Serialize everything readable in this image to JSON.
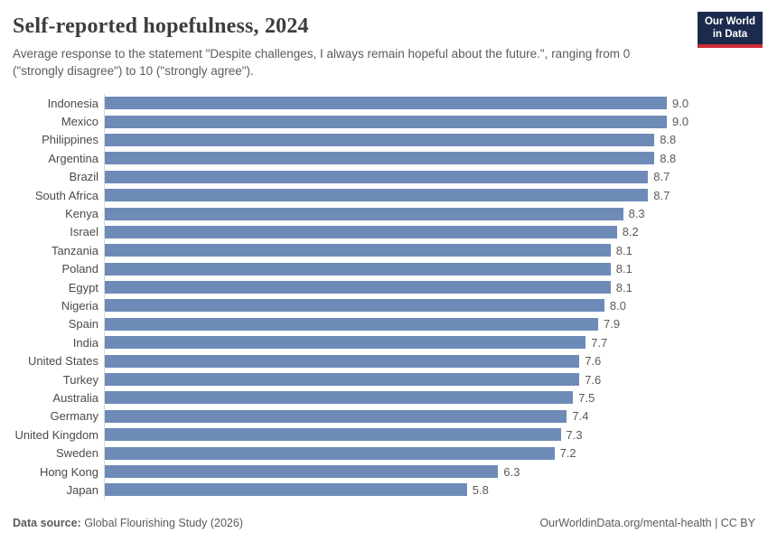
{
  "header": {
    "title": "Self-reported hopefulness, 2024",
    "subtitle": "Average response to the statement \"Despite challenges, I always remain hopeful about the future.\", ranging from 0 (\"strongly disagree\") to 10 (\"strongly agree\").",
    "logo": {
      "line1": "Our World",
      "line2": "in Data"
    }
  },
  "chart_data": {
    "type": "bar",
    "orientation": "horizontal",
    "title": "Self-reported hopefulness, 2024",
    "categories": [
      "Indonesia",
      "Mexico",
      "Philippines",
      "Argentina",
      "Brazil",
      "South Africa",
      "Kenya",
      "Israel",
      "Tanzania",
      "Poland",
      "Egypt",
      "Nigeria",
      "Spain",
      "India",
      "United States",
      "Turkey",
      "Australia",
      "Germany",
      "United Kingdom",
      "Sweden",
      "Hong Kong",
      "Japan"
    ],
    "values": [
      9.0,
      9.0,
      8.8,
      8.8,
      8.7,
      8.7,
      8.3,
      8.2,
      8.1,
      8.1,
      8.1,
      8.0,
      7.9,
      7.7,
      7.6,
      7.6,
      7.5,
      7.4,
      7.3,
      7.2,
      6.3,
      5.8
    ],
    "xlim": [
      0,
      9.0
    ],
    "value_decimals": 1,
    "bar_color": "#6e8bb8",
    "grid": false,
    "legend": "none",
    "xlabel": "",
    "ylabel": ""
  },
  "footer": {
    "source_label": "Data source:",
    "source_value": " Global Flourishing Study (2026)",
    "attribution": "OurWorldinData.org/mental-health | CC BY"
  },
  "colors": {
    "bar": "#6e8bb8",
    "axis_line": "#dadada",
    "logo_background": "#1b2a4d",
    "logo_stripe": "#ce2b36",
    "title_text": "#3d3d3d",
    "body_text": "#5b5b5b"
  }
}
